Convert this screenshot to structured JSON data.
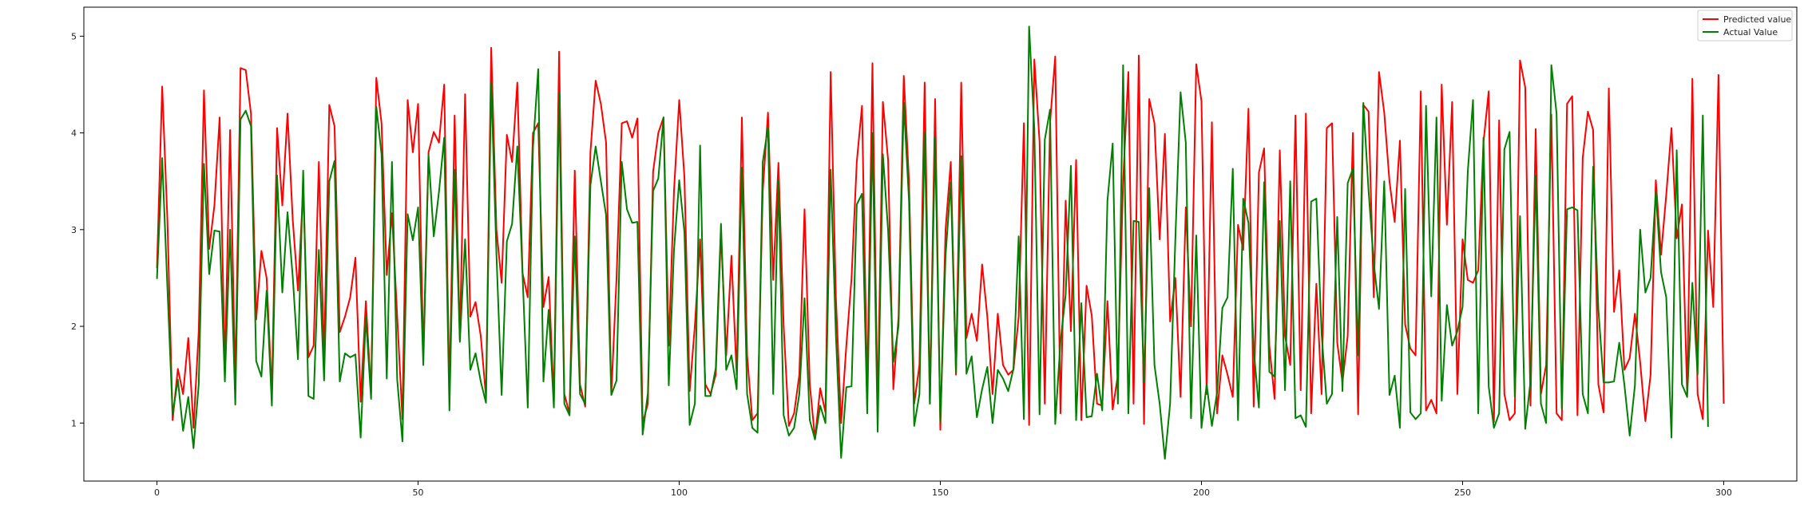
{
  "chart_data": {
    "type": "line",
    "title": "",
    "xlabel": "",
    "ylabel": "",
    "xlim": [
      -14,
      314
    ],
    "ylim": [
      0.4,
      5.3
    ],
    "x_ticks": [
      0,
      50,
      100,
      150,
      200,
      250,
      300
    ],
    "y_ticks": [
      1,
      2,
      3,
      4,
      5
    ],
    "x_tick_labels": [
      "0",
      "50",
      "100",
      "150",
      "200",
      "250",
      "300"
    ],
    "y_tick_labels": [
      "1",
      "2",
      "3",
      "4",
      "5"
    ],
    "legend_position": "top-right",
    "grid": false,
    "series": [
      {
        "name": "Predicted value",
        "color": "#ff0000",
        "values": [
          2.6,
          4.48,
          3.1,
          1.03,
          1.56,
          1.3,
          1.88,
          0.95,
          1.95,
          4.44,
          2.8,
          3.25,
          4.16,
          1.55,
          4.03,
          1.4,
          4.67,
          4.65,
          4.2,
          2.07,
          2.78,
          2.5,
          1.3,
          4.05,
          3.25,
          4.2,
          3.1,
          2.37,
          3.42,
          1.68,
          1.8,
          3.7,
          1.65,
          4.29,
          4.07,
          1.94,
          2.1,
          2.3,
          2.71,
          1.22,
          2.26,
          1.3,
          4.57,
          4.1,
          2.53,
          3.17,
          2.1,
          1.04,
          4.34,
          3.8,
          4.3,
          1.7,
          3.8,
          4.01,
          3.9,
          4.5,
          1.3,
          4.18,
          1.87,
          4.4,
          2.1,
          2.25,
          1.9,
          1.27,
          4.88,
          3.0,
          2.45,
          3.98,
          3.7,
          4.52,
          2.55,
          2.3,
          4.0,
          4.1,
          2.2,
          2.51,
          1.22,
          4.84,
          1.3,
          1.1,
          3.61,
          1.4,
          1.17,
          3.8,
          4.54,
          4.3,
          3.9,
          1.3,
          2.5,
          4.1,
          4.12,
          3.95,
          4.15,
          1.0,
          1.2,
          3.6,
          4.0,
          4.16,
          1.8,
          3.4,
          4.34,
          3.54,
          1.33,
          2.01,
          2.9,
          1.4,
          1.3,
          1.5,
          2.97,
          1.7,
          2.73,
          1.5,
          4.16,
          1.7,
          1.03,
          1.1,
          3.4,
          4.21,
          2.48,
          3.69,
          2.0,
          0.97,
          1.1,
          1.5,
          3.21,
          1.4,
          0.84,
          1.36,
          1.11,
          4.63,
          2.3,
          1.0,
          1.8,
          2.5,
          3.7,
          4.28,
          1.3,
          4.72,
          1.1,
          4.32,
          3.72,
          1.35,
          2.1,
          4.59,
          3.5,
          1.2,
          1.6,
          4.52,
          1.2,
          4.35,
          0.93,
          3.0,
          3.7,
          1.5,
          4.52,
          1.88,
          2.13,
          1.85,
          2.64,
          2.1,
          1.3,
          2.13,
          1.6,
          1.5,
          1.55,
          2.1,
          4.1,
          0.98,
          4.76,
          3.91,
          1.2,
          4.1,
          4.79,
          1.1,
          3.3,
          1.95,
          3.72,
          1.03,
          2.42,
          2.11,
          1.2,
          1.18,
          2.26,
          1.14,
          1.5,
          3.5,
          4.63,
          1.2,
          4.8,
          0.99,
          4.35,
          4.1,
          2.9,
          3.99,
          2.05,
          2.5,
          1.27,
          3.23,
          2.0,
          4.71,
          4.33,
          1.3,
          4.11,
          1.1,
          1.7,
          1.5,
          1.27,
          3.05,
          2.79,
          4.25,
          1.17,
          3.59,
          3.84,
          1.8,
          1.25,
          3.82,
          1.9,
          1.6,
          4.18,
          1.34,
          4.2,
          1.1,
          2.44,
          1.3,
          4.05,
          4.1,
          1.83,
          1.42,
          1.9,
          4.0,
          1.09,
          4.29,
          4.22,
          2.3,
          4.63,
          4.21,
          3.5,
          3.08,
          3.92,
          2.02,
          1.77,
          1.7,
          4.43,
          1.13,
          1.24,
          1.1,
          4.5,
          3.05,
          4.32,
          1.3,
          2.9,
          2.48,
          2.45,
          2.58,
          3.9,
          4.43,
          1.01,
          4.13,
          1.3,
          1.03,
          1.1,
          4.75,
          4.47,
          1.18,
          4.04,
          1.3,
          1.6,
          4.19,
          1.1,
          1.03,
          4.3,
          4.38,
          1.08,
          3.74,
          4.22,
          4.03,
          1.4,
          1.11,
          4.46,
          2.15,
          2.58,
          1.55,
          1.67,
          2.13,
          1.63,
          1.02,
          1.5,
          3.51,
          2.74,
          3.36,
          4.05,
          2.91,
          3.26,
          1.3,
          4.56,
          1.3,
          1.04,
          2.99,
          2.2,
          4.6,
          1.2
        ],
        "line_width": 2
      },
      {
        "name": "Actual Value",
        "color": "#008000",
        "values": [
          2.49,
          3.74,
          2.4,
          1.09,
          1.45,
          0.92,
          1.27,
          0.74,
          1.4,
          3.68,
          2.54,
          2.99,
          2.98,
          1.43,
          3.0,
          1.19,
          4.14,
          4.23,
          4.07,
          1.64,
          1.48,
          2.37,
          1.18,
          3.56,
          2.35,
          3.18,
          2.51,
          1.66,
          3.61,
          1.28,
          1.25,
          2.79,
          1.44,
          3.5,
          3.71,
          1.43,
          1.72,
          1.68,
          1.71,
          0.85,
          2.1,
          1.25,
          4.27,
          3.78,
          1.46,
          3.7,
          1.45,
          0.81,
          3.16,
          2.89,
          3.23,
          1.6,
          3.77,
          2.93,
          3.39,
          3.95,
          1.13,
          3.62,
          1.84,
          2.9,
          1.55,
          1.72,
          1.43,
          1.21,
          4.52,
          2.75,
          1.29,
          2.88,
          3.06,
          3.86,
          2.54,
          1.16,
          3.85,
          4.66,
          1.43,
          2.17,
          1.16,
          4.41,
          1.2,
          1.08,
          2.93,
          1.3,
          1.2,
          3.46,
          3.86,
          3.5,
          3.15,
          1.29,
          1.44,
          3.7,
          3.21,
          3.07,
          3.08,
          0.88,
          1.31,
          3.4,
          3.53,
          4.16,
          1.39,
          2.79,
          3.51,
          2.97,
          0.98,
          1.2,
          3.87,
          1.28,
          1.28,
          1.57,
          3.06,
          1.55,
          1.7,
          1.35,
          3.64,
          1.3,
          0.95,
          0.9,
          3.7,
          4.06,
          1.3,
          3.51,
          1.08,
          0.87,
          0.95,
          1.3,
          2.29,
          1.03,
          0.83,
          1.18,
          1.0,
          3.62,
          1.91,
          0.64,
          1.37,
          1.38,
          3.26,
          3.37,
          1.1,
          4.0,
          0.91,
          3.78,
          2.99,
          1.63,
          2.0,
          4.31,
          3.3,
          0.97,
          1.3,
          4.01,
          1.2,
          3.95,
          1.01,
          2.73,
          3.49,
          1.52,
          3.76,
          1.51,
          1.69,
          1.06,
          1.35,
          1.58,
          1.0,
          1.55,
          1.46,
          1.33,
          1.56,
          2.93,
          1.04,
          5.1,
          4.04,
          1.09,
          3.93,
          4.24,
          0.99,
          1.84,
          2.33,
          3.66,
          1.03,
          2.24,
          1.06,
          1.07,
          1.51,
          1.13,
          3.3,
          3.89,
          1.2,
          4.7,
          1.1,
          3.09,
          3.08,
          1.43,
          3.43,
          1.6,
          1.2,
          0.63,
          1.2,
          2.9,
          4.42,
          3.9,
          1.05,
          2.94,
          0.95,
          1.4,
          0.97,
          1.32,
          2.19,
          2.3,
          3.63,
          1.03,
          3.32,
          3.07,
          1.76,
          1.16,
          3.49,
          1.53,
          1.48,
          3.09,
          1.34,
          3.5,
          1.05,
          1.08,
          0.96,
          3.29,
          3.32,
          1.93,
          1.2,
          1.3,
          3.13,
          1.33,
          3.48,
          3.63,
          1.7,
          4.31,
          3.4,
          2.65,
          2.18,
          3.5,
          1.29,
          1.49,
          0.95,
          3.42,
          1.11,
          1.04,
          1.1,
          4.28,
          2.31,
          4.16,
          1.23,
          2.22,
          1.8,
          1.95,
          2.2,
          3.6,
          4.34,
          1.1,
          3.95,
          1.38,
          0.95,
          1.1,
          3.83,
          4.01,
          1.27,
          3.14,
          0.94,
          1.43,
          3.56,
          1.2,
          1.0,
          4.7,
          4.2,
          1.15,
          3.21,
          3.23,
          3.2,
          1.3,
          1.1,
          3.65,
          2.18,
          1.42,
          1.42,
          1.43,
          1.83,
          1.39,
          0.87,
          1.39,
          3.0,
          2.35,
          2.5,
          3.39,
          2.56,
          2.3,
          0.85,
          3.82,
          1.4,
          1.27,
          2.45,
          1.5,
          4.18,
          0.96
        ],
        "line_width": 2
      }
    ]
  }
}
